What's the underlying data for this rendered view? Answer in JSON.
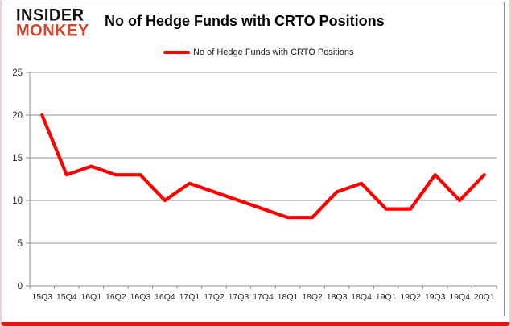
{
  "logo": {
    "line1": "INSIDER",
    "line2": "MONKEY"
  },
  "header": {
    "title": "No of Hedge Funds with CRTO Positions"
  },
  "legend": {
    "label": "No of Hedge Funds with CRTO Positions"
  },
  "chart_data": {
    "type": "line",
    "title": "No of Hedge Funds with CRTO Positions",
    "categories": [
      "15Q3",
      "15Q4",
      "16Q1",
      "16Q2",
      "16Q3",
      "16Q4",
      "17Q1",
      "17Q2",
      "17Q3",
      "17Q4",
      "18Q1",
      "18Q2",
      "18Q3",
      "18Q4",
      "19Q1",
      "19Q2",
      "19Q3",
      "19Q4",
      "20Q1"
    ],
    "series": [
      {
        "name": "No of Hedge Funds with CRTO Positions",
        "values": [
          20,
          13,
          14,
          13,
          13,
          10,
          12,
          11,
          10,
          9,
          8,
          8,
          11,
          12,
          9,
          9,
          13,
          10,
          13
        ]
      }
    ],
    "xlabel": "",
    "ylabel": "",
    "ylim": [
      0,
      25
    ],
    "y_ticks": [
      0,
      5,
      10,
      15,
      20,
      25
    ],
    "grid": true,
    "legend_position": "top"
  },
  "colors": {
    "line": "#ff0000",
    "grid": "#8f8f8f",
    "axis": "#8f8f8f",
    "tick_text": "#262626",
    "logo_red": "#d2472e",
    "frame_side": "#f6cccc",
    "frame_bottom": "#ec1111"
  }
}
